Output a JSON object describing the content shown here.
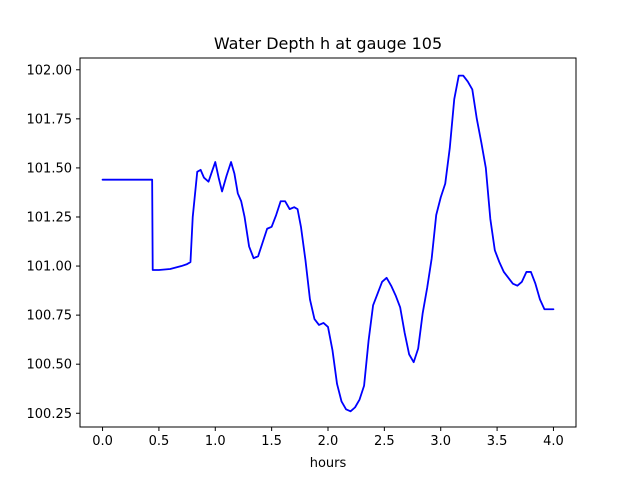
{
  "chart_data": {
    "type": "line",
    "title": "Water Depth h at gauge 105",
    "xlabel": "hours",
    "ylabel": "",
    "xlim": [
      -0.2,
      4.2
    ],
    "ylim": [
      100.18,
      102.06
    ],
    "xticks": [
      0.0,
      0.5,
      1.0,
      1.5,
      2.0,
      2.5,
      3.0,
      3.5,
      4.0
    ],
    "xtick_labels": [
      "0.0",
      "0.5",
      "1.0",
      "1.5",
      "2.0",
      "2.5",
      "3.0",
      "3.5",
      "4.0"
    ],
    "yticks": [
      100.25,
      100.5,
      100.75,
      101.0,
      101.25,
      101.5,
      101.75,
      102.0
    ],
    "ytick_labels": [
      "100.25",
      "100.50",
      "100.75",
      "101.00",
      "101.25",
      "101.50",
      "101.75",
      "102.00"
    ],
    "grid": false,
    "series": [
      {
        "color": "#0000ff",
        "x": [
          0.0,
          0.1,
          0.2,
          0.3,
          0.4,
          0.44,
          0.445,
          0.5,
          0.6,
          0.7,
          0.75,
          0.78,
          0.8,
          0.84,
          0.87,
          0.9,
          0.94,
          0.97,
          1.0,
          1.03,
          1.06,
          1.1,
          1.14,
          1.17,
          1.2,
          1.23,
          1.26,
          1.3,
          1.34,
          1.38,
          1.42,
          1.46,
          1.5,
          1.54,
          1.58,
          1.62,
          1.66,
          1.7,
          1.73,
          1.76,
          1.8,
          1.84,
          1.88,
          1.92,
          1.96,
          2.0,
          2.04,
          2.08,
          2.12,
          2.16,
          2.2,
          2.24,
          2.28,
          2.32,
          2.36,
          2.4,
          2.44,
          2.48,
          2.52,
          2.56,
          2.6,
          2.64,
          2.68,
          2.72,
          2.76,
          2.8,
          2.84,
          2.88,
          2.92,
          2.96,
          3.0,
          3.04,
          3.08,
          3.12,
          3.16,
          3.2,
          3.24,
          3.28,
          3.32,
          3.36,
          3.4,
          3.44,
          3.48,
          3.52,
          3.56,
          3.6,
          3.64,
          3.68,
          3.72,
          3.76,
          3.8,
          3.84,
          3.88,
          3.92,
          3.96,
          4.0
        ],
        "y": [
          101.44,
          101.44,
          101.44,
          101.44,
          101.44,
          101.44,
          100.98,
          100.98,
          100.985,
          101.0,
          101.01,
          101.02,
          101.25,
          101.48,
          101.49,
          101.45,
          101.43,
          101.48,
          101.53,
          101.45,
          101.38,
          101.46,
          101.53,
          101.47,
          101.37,
          101.33,
          101.25,
          101.1,
          101.04,
          101.05,
          101.12,
          101.19,
          101.2,
          101.26,
          101.33,
          101.33,
          101.29,
          101.3,
          101.29,
          101.2,
          101.03,
          100.83,
          100.73,
          100.7,
          100.71,
          100.69,
          100.57,
          100.4,
          100.31,
          100.27,
          100.26,
          100.28,
          100.32,
          100.39,
          100.62,
          100.8,
          100.86,
          100.92,
          100.94,
          100.9,
          100.85,
          100.79,
          100.66,
          100.55,
          100.51,
          100.58,
          100.76,
          100.89,
          101.04,
          101.26,
          101.35,
          101.42,
          101.6,
          101.85,
          101.97,
          101.97,
          101.94,
          101.9,
          101.75,
          101.63,
          101.5,
          101.24,
          101.08,
          101.02,
          100.97,
          100.94,
          100.91,
          100.9,
          100.92,
          100.97,
          100.97,
          100.91,
          100.83,
          100.78,
          100.78,
          100.78
        ]
      }
    ]
  }
}
